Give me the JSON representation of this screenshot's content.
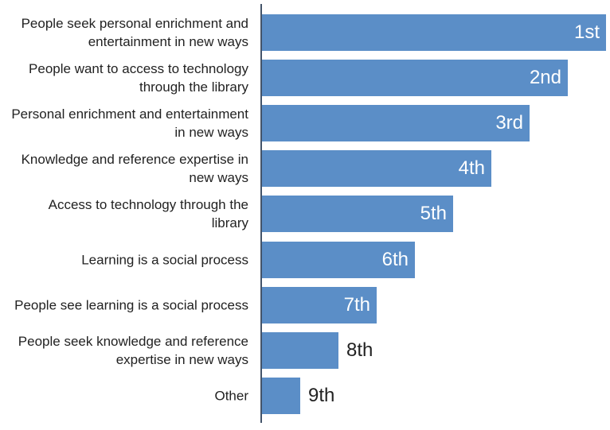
{
  "chart_data": {
    "type": "bar",
    "orientation": "horizontal",
    "categories": [
      "People seek personal enrichment and entertainment in new ways",
      "People want to access to technology through the library",
      "Personal enrichment and entertainment in new ways",
      "Knowledge and reference expertise in new ways",
      "Access to technology through the library",
      "Learning is a social process",
      "People see learning is a social process",
      "People seek knowledge and reference expertise in new ways",
      "Other"
    ],
    "values": [
      1,
      2,
      3,
      4,
      5,
      6,
      7,
      8,
      9
    ],
    "value_labels": [
      "1st",
      "2nd",
      "3rd",
      "4th",
      "5th",
      "6th",
      "7th",
      "8th",
      "9th"
    ],
    "xlim": [
      10,
      0
    ],
    "color": "#5b8ec7"
  }
}
